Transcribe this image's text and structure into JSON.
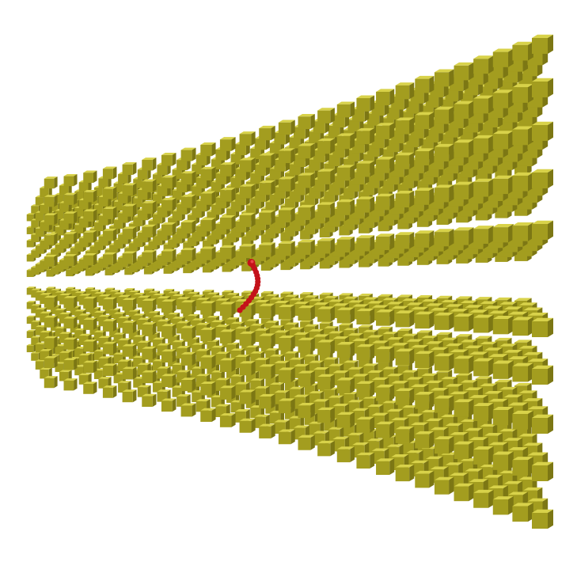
{
  "scene": {
    "background_color": "#ffffff",
    "cube_color": "#b9b32a",
    "cube_top_color": "#d8d24a",
    "cube_side_color": "#7c7714",
    "cube_front_color": "#a39d1f",
    "molecule_color": "#c4121a",
    "molecule_highlight_color": "#e8454a",
    "grid_planes_above": 5,
    "grid_planes_below": 5,
    "depth_rows_per_plane": 5,
    "columns_per_row": 26,
    "chain_beads": 16
  }
}
